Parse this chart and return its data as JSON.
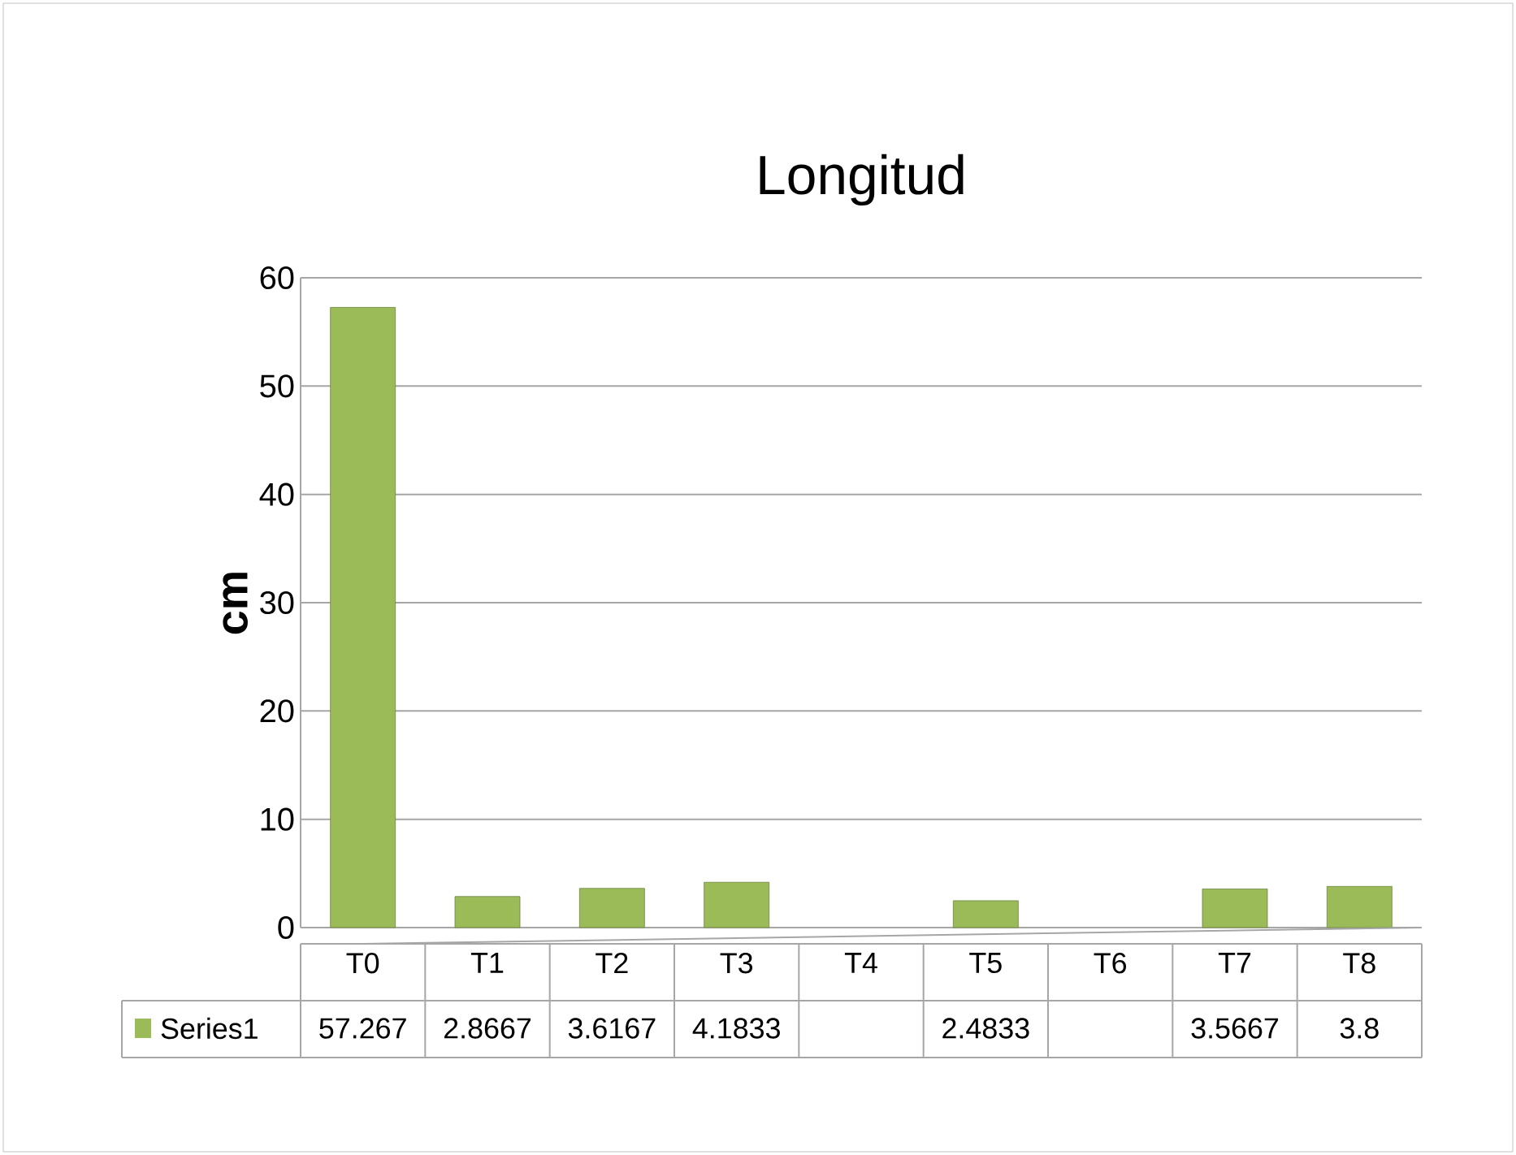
{
  "chart_data": {
    "type": "bar",
    "title": "Longitud",
    "ylabel": "cm",
    "categories": [
      "T0",
      "T1",
      "T2",
      "T3",
      "T4",
      "T5",
      "T6",
      "T7",
      "T8"
    ],
    "series": [
      {
        "name": "Series1",
        "color": "#9bbb59",
        "values": [
          57.267,
          2.8667,
          3.6167,
          4.1833,
          null,
          2.4833,
          null,
          3.5667,
          3.8
        ]
      }
    ],
    "ylim": [
      0,
      60
    ],
    "yticks": [
      0,
      10,
      20,
      30,
      40,
      50,
      60
    ],
    "grid": "y",
    "legend": "bottom",
    "data_labels": true
  }
}
